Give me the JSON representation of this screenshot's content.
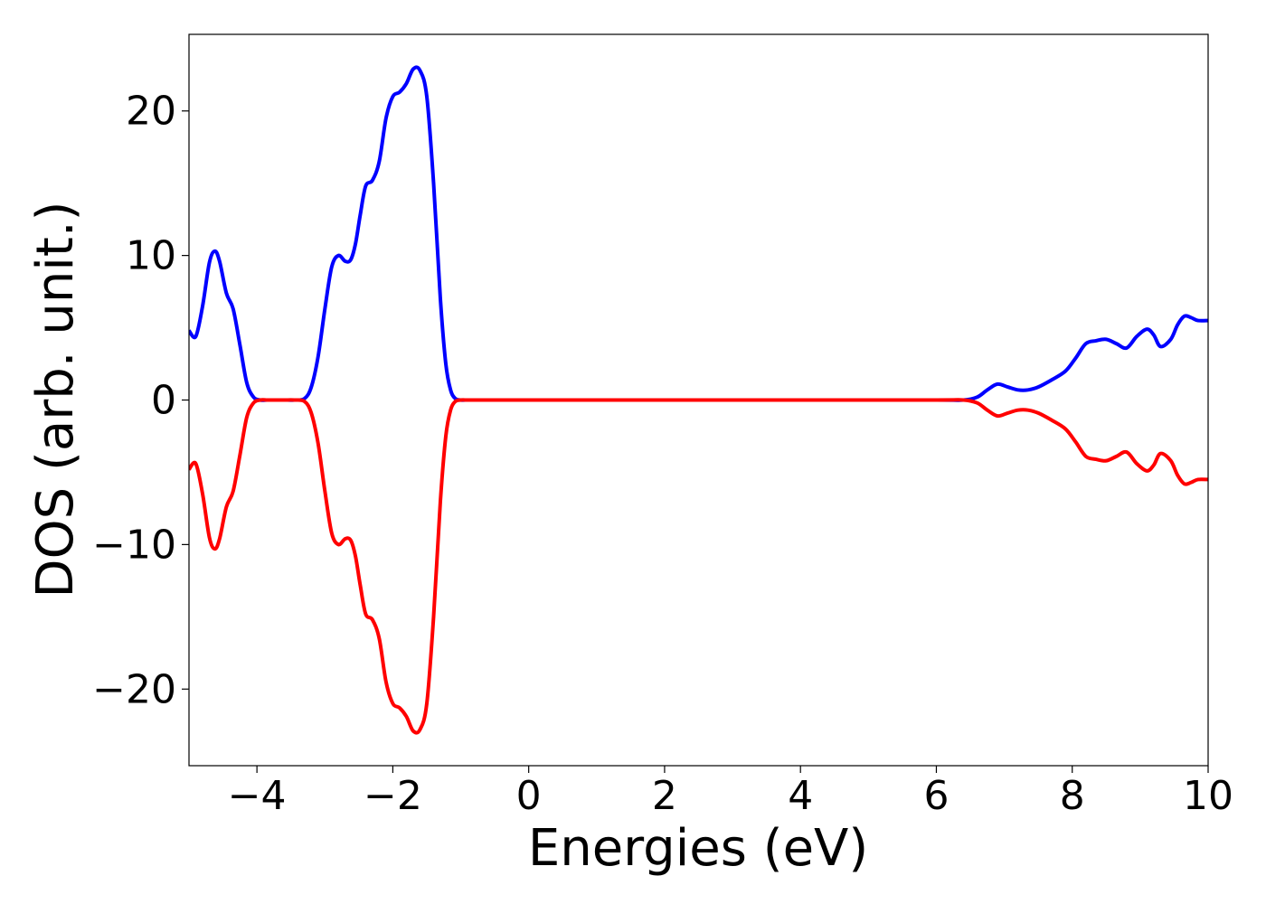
{
  "chart_data": {
    "type": "line",
    "title": "",
    "xlabel": "Energies (eV)",
    "ylabel": "DOS (arb. unit.)",
    "xlim": [
      -5,
      10
    ],
    "ylim": [
      -25.3,
      25.3
    ],
    "xticks": [
      -4,
      -2,
      0,
      2,
      4,
      6,
      8,
      10
    ],
    "yticks": [
      -20,
      -10,
      0,
      10,
      20
    ],
    "xtick_labels": [
      "−4",
      "−2",
      "0",
      "2",
      "4",
      "6",
      "8",
      "10"
    ],
    "ytick_labels": [
      "−20",
      "−10",
      "0",
      "10",
      "20"
    ],
    "grid": false,
    "legend": "none",
    "series": [
      {
        "color": "#0000ff",
        "x": [
          -5.0,
          -4.9,
          -4.8,
          -4.7,
          -4.62,
          -4.55,
          -4.45,
          -4.35,
          -4.25,
          -4.15,
          -4.05,
          -3.95,
          -3.85,
          -3.75,
          -3.6,
          -3.45,
          -3.3,
          -3.2,
          -3.1,
          -3.0,
          -2.9,
          -2.8,
          -2.7,
          -2.62,
          -2.55,
          -2.48,
          -2.4,
          -2.3,
          -2.2,
          -2.1,
          -2.0,
          -1.9,
          -1.8,
          -1.7,
          -1.6,
          -1.5,
          -1.4,
          -1.3,
          -1.22,
          -1.15,
          -1.08,
          -1.0,
          -0.9,
          -0.8,
          -0.7,
          -0.6,
          -0.5,
          -0.4,
          0.0,
          2.0,
          4.0,
          6.0,
          6.4,
          6.6,
          6.75,
          6.9,
          7.05,
          7.2,
          7.35,
          7.5,
          7.7,
          7.9,
          8.05,
          8.2,
          8.35,
          8.5,
          8.65,
          8.8,
          8.95,
          9.1,
          9.2,
          9.3,
          9.45,
          9.55,
          9.65,
          9.75,
          9.85,
          10.0
        ],
        "y": [
          4.8,
          4.4,
          6.5,
          9.5,
          10.3,
          9.6,
          7.4,
          6.3,
          3.8,
          1.2,
          0.2,
          0.0,
          0.0,
          0.0,
          0.0,
          0.0,
          0.1,
          0.9,
          3.0,
          6.3,
          9.2,
          10.0,
          9.6,
          9.7,
          10.8,
          12.8,
          14.8,
          15.2,
          16.5,
          19.5,
          21.0,
          21.3,
          21.9,
          22.9,
          22.8,
          21.0,
          15.0,
          7.0,
          2.5,
          0.7,
          0.1,
          0.0,
          0.0,
          0.0,
          0.0,
          0.0,
          0.0,
          0.0,
          0.0,
          0.0,
          0.0,
          0.0,
          0.0,
          0.2,
          0.7,
          1.1,
          0.9,
          0.7,
          0.7,
          0.9,
          1.4,
          2.0,
          2.9,
          3.9,
          4.1,
          4.2,
          3.9,
          3.6,
          4.4,
          4.9,
          4.5,
          3.7,
          4.2,
          5.2,
          5.8,
          5.7,
          5.5,
          5.5
        ]
      },
      {
        "color": "#ff0000",
        "x": [
          -5.0,
          -4.9,
          -4.8,
          -4.7,
          -4.62,
          -4.55,
          -4.45,
          -4.35,
          -4.25,
          -4.15,
          -4.05,
          -3.95,
          -3.85,
          -3.75,
          -3.6,
          -3.45,
          -3.3,
          -3.2,
          -3.1,
          -3.0,
          -2.9,
          -2.8,
          -2.7,
          -2.62,
          -2.55,
          -2.48,
          -2.4,
          -2.3,
          -2.2,
          -2.1,
          -2.0,
          -1.9,
          -1.8,
          -1.7,
          -1.6,
          -1.5,
          -1.4,
          -1.3,
          -1.22,
          -1.15,
          -1.08,
          -1.0,
          -0.9,
          -0.8,
          -0.7,
          -0.6,
          -0.5,
          -0.4,
          0.0,
          2.0,
          4.0,
          6.0,
          6.4,
          6.6,
          6.75,
          6.9,
          7.05,
          7.2,
          7.35,
          7.5,
          7.7,
          7.9,
          8.05,
          8.2,
          8.35,
          8.5,
          8.65,
          8.8,
          8.95,
          9.1,
          9.2,
          9.3,
          9.45,
          9.55,
          9.65,
          9.75,
          9.85,
          10.0
        ],
        "y": [
          -4.8,
          -4.4,
          -6.5,
          -9.5,
          -10.3,
          -9.6,
          -7.4,
          -6.3,
          -3.8,
          -1.2,
          -0.2,
          -0.0,
          -0.0,
          -0.0,
          -0.0,
          -0.0,
          -0.1,
          -0.9,
          -3.0,
          -6.3,
          -9.2,
          -10.0,
          -9.6,
          -9.7,
          -10.8,
          -12.8,
          -14.8,
          -15.2,
          -16.5,
          -19.5,
          -21.0,
          -21.3,
          -21.9,
          -22.9,
          -22.8,
          -21.0,
          -15.0,
          -7.0,
          -2.5,
          -0.7,
          -0.1,
          -0.0,
          -0.0,
          -0.0,
          -0.0,
          -0.0,
          -0.0,
          -0.0,
          -0.0,
          -0.0,
          -0.0,
          -0.0,
          -0.0,
          -0.2,
          -0.7,
          -1.1,
          -0.9,
          -0.7,
          -0.7,
          -0.9,
          -1.4,
          -2.0,
          -2.9,
          -3.9,
          -4.1,
          -4.2,
          -3.9,
          -3.6,
          -4.4,
          -4.9,
          -4.5,
          -3.7,
          -4.2,
          -5.2,
          -5.8,
          -5.7,
          -5.5,
          -5.5
        ]
      }
    ]
  }
}
